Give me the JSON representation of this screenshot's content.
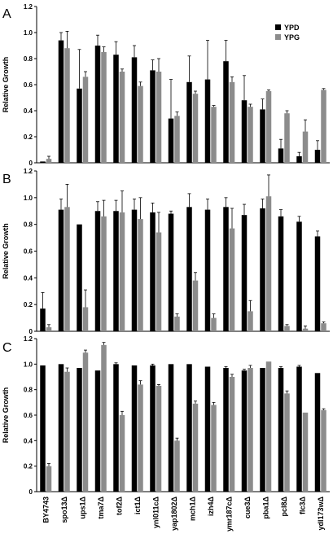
{
  "chart_data": [
    {
      "type": "bar",
      "panel_label": "A",
      "ylabel": "Relative Growth",
      "ylim": [
        0,
        1.2
      ],
      "yticks": [
        "0",
        "0.2",
        "0.4",
        "0.6",
        "0.8",
        "1.0",
        "1.2"
      ],
      "categories": [
        "BY4743",
        "spo13Δ",
        "ups1Δ",
        "tma7Δ",
        "tof2Δ",
        "ict1Δ",
        "ynl011cΔ",
        "yap1802Δ",
        "mch1Δ",
        "izh4Δ",
        "ymr187cΔ",
        "cue3Δ",
        "pba1Δ",
        "pcl8Δ",
        "flc3Δ",
        "ydl173wΔ"
      ],
      "legend": {
        "placement": "top-right",
        "entries": [
          "YPD",
          "YPG"
        ]
      },
      "series": [
        {
          "name": "YPD",
          "color": "#000000",
          "values": [
            0.01,
            0.94,
            0.57,
            0.9,
            0.83,
            0.81,
            0.71,
            0.34,
            0.62,
            0.64,
            0.78,
            0.48,
            0.41,
            0.11,
            0.05,
            0.1
          ],
          "errors": [
            0.0,
            0.06,
            0.3,
            0.08,
            0.1,
            0.09,
            0.08,
            0.3,
            0.2,
            0.3,
            0.16,
            0.19,
            0.08,
            0.07,
            0.03,
            0.07
          ]
        },
        {
          "name": "YPG",
          "color": "#8c8c8c",
          "values": [
            0.03,
            0.88,
            0.66,
            0.85,
            0.7,
            0.59,
            0.7,
            0.36,
            0.53,
            0.43,
            0.62,
            0.43,
            0.55,
            0.38,
            0.24,
            0.56
          ],
          "errors": [
            0.02,
            0.13,
            0.04,
            0.04,
            0.02,
            0.03,
            0.1,
            0.03,
            0.02,
            0.01,
            0.04,
            0.02,
            0.01,
            0.02,
            0.09,
            0.01
          ]
        }
      ]
    },
    {
      "type": "bar",
      "panel_label": "B",
      "ylabel": "Relative Growth",
      "ylim": [
        0,
        1.2
      ],
      "yticks": [
        "0",
        "0.2",
        "0.4",
        "0.6",
        "0.8",
        "1.0",
        "1.2"
      ],
      "categories": [
        "BY4743",
        "spo13Δ",
        "ups1Δ",
        "tma7Δ",
        "tof2Δ",
        "ict1Δ",
        "ynl011cΔ",
        "yap1802Δ",
        "mch1Δ",
        "izh4Δ",
        "ymr187cΔ",
        "cue3Δ",
        "pba1Δ",
        "pcl8Δ",
        "flc3Δ",
        "ydl173wΔ"
      ],
      "series": [
        {
          "name": "YPD",
          "color": "#000000",
          "values": [
            0.17,
            0.91,
            0.8,
            0.9,
            0.9,
            0.91,
            0.89,
            0.88,
            0.93,
            0.91,
            0.93,
            0.87,
            0.92,
            0.86,
            0.82,
            0.71
          ],
          "errors": [
            0.12,
            0.08,
            0.0,
            0.07,
            0.08,
            0.08,
            0.07,
            0.02,
            0.1,
            0.08,
            0.07,
            0.08,
            0.07,
            0.05,
            0.04,
            0.04
          ]
        },
        {
          "name": "YPG",
          "color": "#8c8c8c",
          "values": [
            0.03,
            0.93,
            0.18,
            0.86,
            0.89,
            0.84,
            0.74,
            0.11,
            0.38,
            0.1,
            0.77,
            0.15,
            1.01,
            0.04,
            0.02,
            0.06
          ],
          "errors": [
            0.02,
            0.17,
            0.13,
            0.12,
            0.16,
            0.16,
            0.15,
            0.02,
            0.06,
            0.03,
            0.15,
            0.08,
            0.16,
            0.01,
            0.02,
            0.01
          ]
        }
      ]
    },
    {
      "type": "bar",
      "panel_label": "C",
      "ylabel": "Relative Growth",
      "ylim": [
        0,
        1.2
      ],
      "yticks": [
        "0",
        "0.2",
        "0.4",
        "0.6",
        "0.8",
        "1.0",
        "1.2"
      ],
      "categories": [
        "BY4743",
        "spo13Δ",
        "ups1Δ",
        "tma7Δ",
        "tof2Δ",
        "ict1Δ",
        "ynl011cΔ",
        "yap1802Δ",
        "mch1Δ",
        "izh4Δ",
        "ymr187cΔ",
        "cue3Δ",
        "pba1Δ",
        "pcl8Δ",
        "flc3Δ",
        "ydl173wΔ"
      ],
      "series": [
        {
          "name": "YPD",
          "color": "#000000",
          "values": [
            0.99,
            1.0,
            0.97,
            0.95,
            1.0,
            0.99,
            0.99,
            1.0,
            1.0,
            0.98,
            0.97,
            0.95,
            0.97,
            0.97,
            0.98,
            0.93
          ],
          "errors": [
            0.0,
            0.0,
            0.0,
            0.0,
            0.01,
            0.0,
            0.01,
            0.0,
            0.0,
            0.0,
            0.01,
            0.01,
            0.0,
            0.01,
            0.01,
            0.0
          ]
        },
        {
          "name": "YPG",
          "color": "#8c8c8c",
          "values": [
            0.2,
            0.94,
            1.09,
            1.15,
            0.6,
            0.84,
            0.83,
            0.4,
            0.69,
            0.68,
            0.9,
            0.97,
            1.02,
            0.77,
            0.62,
            0.64
          ],
          "errors": [
            0.02,
            0.03,
            0.02,
            0.02,
            0.03,
            0.03,
            0.01,
            0.02,
            0.02,
            0.02,
            0.02,
            0.02,
            0.0,
            0.02,
            0.0,
            0.01
          ]
        }
      ]
    }
  ]
}
